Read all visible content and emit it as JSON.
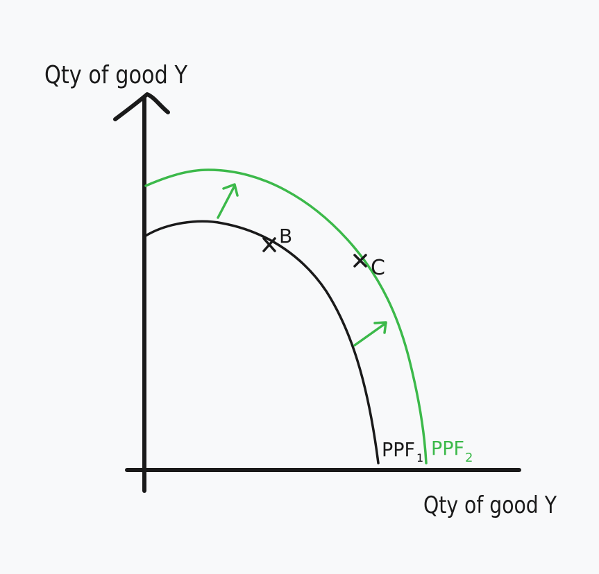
{
  "labels": {
    "y_axis": "Qty of good Y",
    "x_axis": "Qty of good Y",
    "point_b": "B",
    "point_c": "C",
    "ppf1_main": "PPF",
    "ppf1_sub": "1",
    "ppf2_main": "PPF",
    "ppf2_sub": "2"
  },
  "colors": {
    "background": "#f8f9fa",
    "ink": "#1a1a1a",
    "green": "#3cb94a"
  }
}
